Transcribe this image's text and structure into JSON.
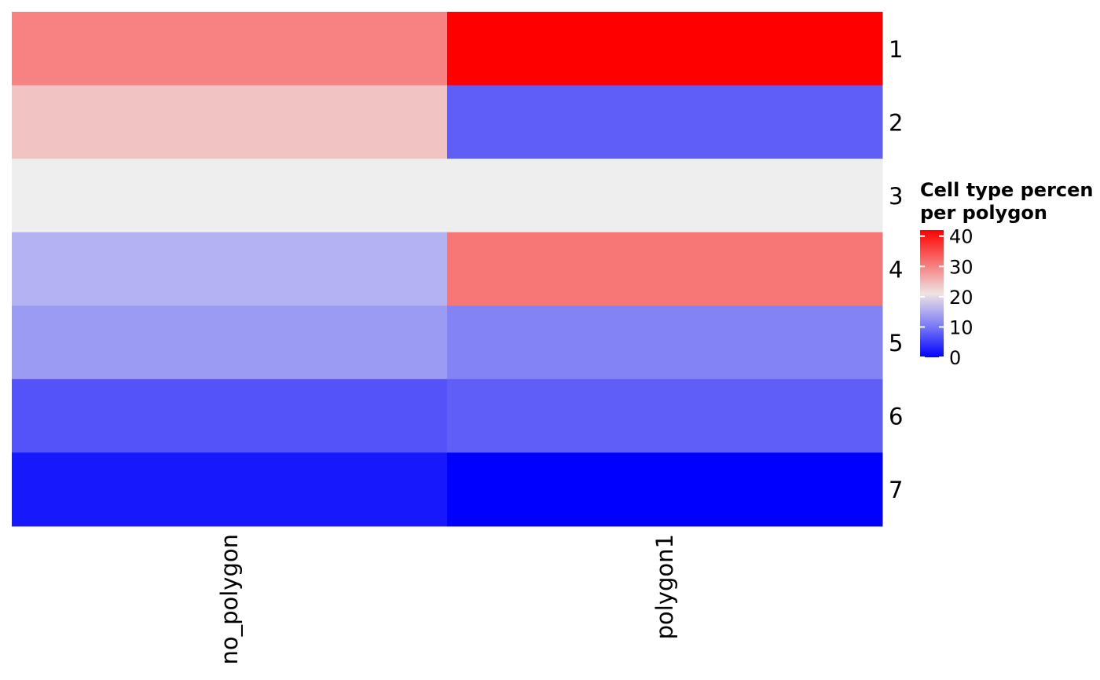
{
  "chart_data": {
    "type": "heatmap",
    "columns": [
      "no_polygon",
      "polygon1"
    ],
    "rows": [
      "1",
      "2",
      "3",
      "4",
      "5",
      "6",
      "7"
    ],
    "values": [
      [
        30,
        42
      ],
      [
        24,
        8
      ],
      [
        20,
        20
      ],
      [
        15,
        31
      ],
      [
        13,
        11
      ],
      [
        7,
        8
      ],
      [
        2,
        0
      ]
    ],
    "legend": {
      "title_lines": [
        "Cell type percen",
        "per polygon"
      ],
      "ticks": [
        40,
        30,
        20,
        10,
        0
      ],
      "range": [
        0,
        42
      ],
      "placement": "right"
    },
    "colors": {
      "low": "#0000ff",
      "mid": "#eeeeee",
      "high": "#ff0000",
      "midpoint": 20
    }
  }
}
